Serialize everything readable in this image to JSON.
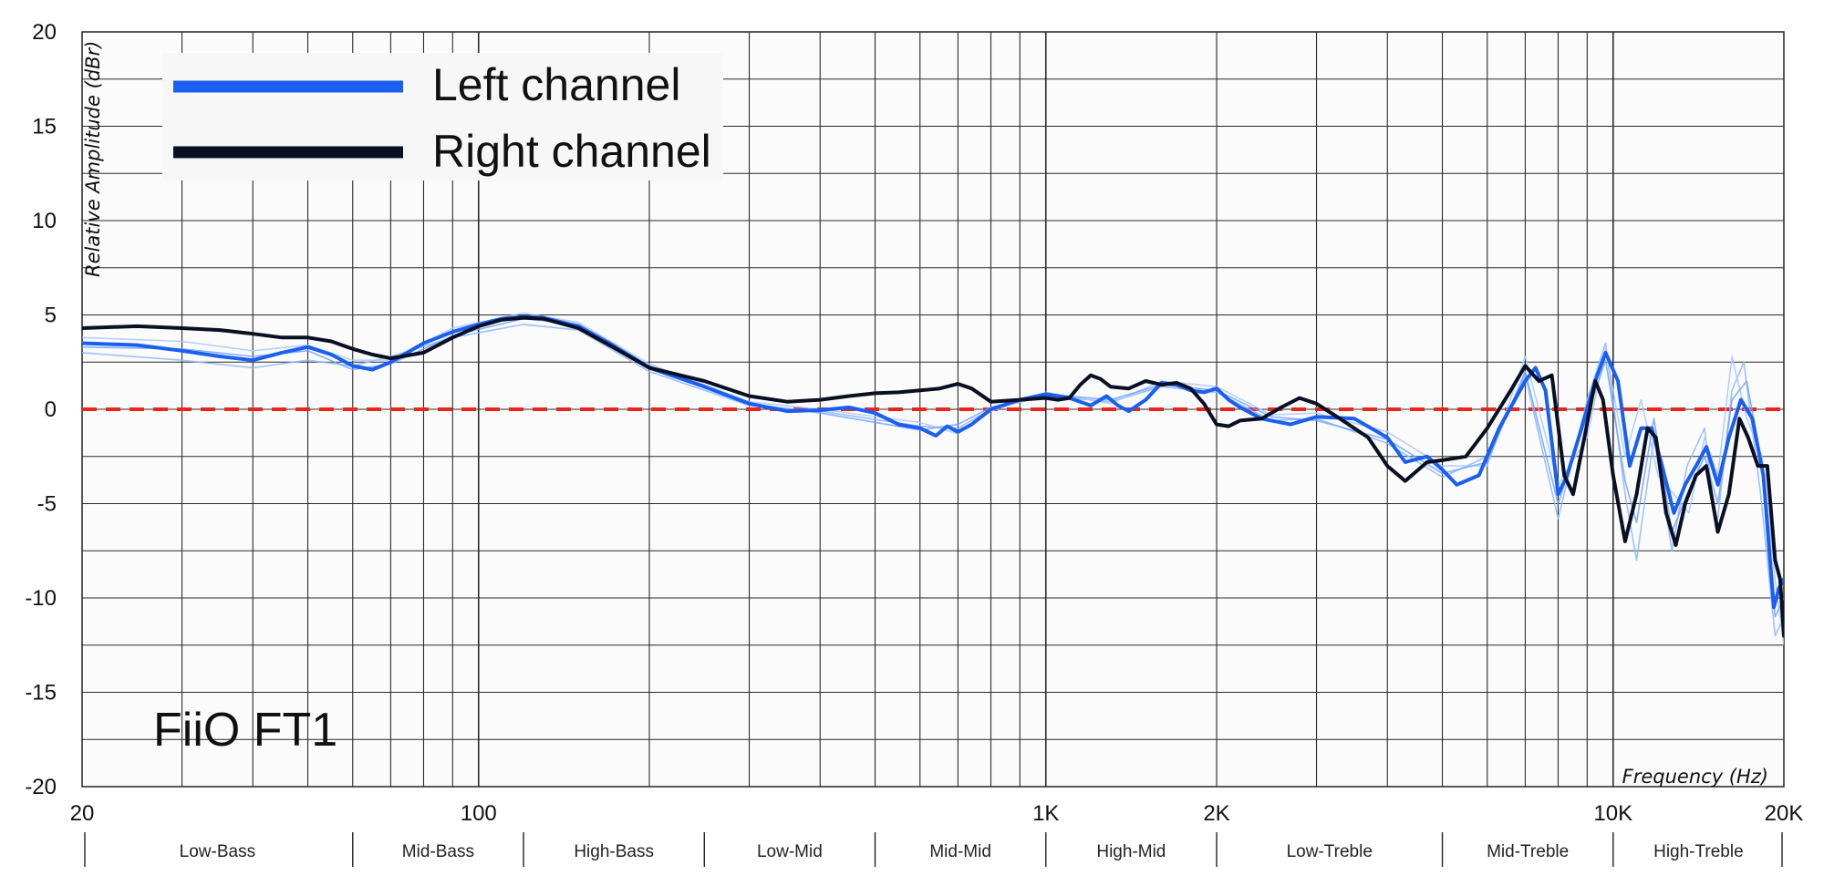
{
  "chart_data": {
    "type": "line",
    "title": "FiiO FT1",
    "xlabel": "Frequency (Hz)",
    "ylabel": "Relative Amplitude (dBr)",
    "x_scale": "log",
    "xlim": [
      20,
      20000
    ],
    "ylim": [
      -20,
      20
    ],
    "grid": true,
    "legend_position": "top-left",
    "x_ticks": [
      {
        "value": 20,
        "label": "20"
      },
      {
        "value": 100,
        "label": "100"
      },
      {
        "value": 1000,
        "label": "1K"
      },
      {
        "value": 2000,
        "label": "2K"
      },
      {
        "value": 10000,
        "label": "10K"
      },
      {
        "value": 20000,
        "label": "20K"
      }
    ],
    "y_ticks": [
      20,
      15,
      10,
      5,
      0,
      -5,
      -10,
      -15,
      -20
    ],
    "reference_line": {
      "y": 0,
      "color": "#e8261b",
      "style": "dashed"
    },
    "bands": [
      {
        "label": "Low-Bass",
        "from": 20,
        "to": 60
      },
      {
        "label": "Mid-Bass",
        "from": 60,
        "to": 120
      },
      {
        "label": "High-Bass",
        "from": 120,
        "to": 250
      },
      {
        "label": "Low-Mid",
        "from": 250,
        "to": 500
      },
      {
        "label": "Mid-Mid",
        "from": 500,
        "to": 1000
      },
      {
        "label": "High-Mid",
        "from": 1000,
        "to": 2000
      },
      {
        "label": "Low-Treble",
        "from": 2000,
        "to": 5000
      },
      {
        "label": "Mid-Treble",
        "from": 5000,
        "to": 10000
      },
      {
        "label": "High-Treble",
        "from": 10000,
        "to": 20000
      }
    ],
    "series": [
      {
        "name": "Left channel",
        "color": "#1a5ff0",
        "points": [
          [
            20,
            3.5
          ],
          [
            25,
            3.4
          ],
          [
            30,
            3.1
          ],
          [
            35,
            2.8
          ],
          [
            40,
            2.6
          ],
          [
            45,
            3.0
          ],
          [
            50,
            3.3
          ],
          [
            55,
            2.9
          ],
          [
            60,
            2.3
          ],
          [
            65,
            2.1
          ],
          [
            70,
            2.5
          ],
          [
            80,
            3.5
          ],
          [
            90,
            4.1
          ],
          [
            100,
            4.5
          ],
          [
            110,
            4.8
          ],
          [
            120,
            4.9
          ],
          [
            130,
            4.85
          ],
          [
            150,
            4.4
          ],
          [
            170,
            3.5
          ],
          [
            200,
            2.2
          ],
          [
            250,
            1.2
          ],
          [
            300,
            0.3
          ],
          [
            350,
            -0.1
          ],
          [
            400,
            -0.05
          ],
          [
            450,
            0.1
          ],
          [
            500,
            -0.2
          ],
          [
            550,
            -0.8
          ],
          [
            600,
            -1.0
          ],
          [
            640,
            -1.4
          ],
          [
            670,
            -0.9
          ],
          [
            700,
            -1.2
          ],
          [
            740,
            -0.8
          ],
          [
            800,
            0.0
          ],
          [
            900,
            0.5
          ],
          [
            1000,
            0.8
          ],
          [
            1100,
            0.6
          ],
          [
            1200,
            0.2
          ],
          [
            1280,
            0.7
          ],
          [
            1340,
            0.2
          ],
          [
            1400,
            -0.1
          ],
          [
            1500,
            0.5
          ],
          [
            1600,
            1.4
          ],
          [
            1700,
            1.3
          ],
          [
            1800,
            1.0
          ],
          [
            1900,
            0.9
          ],
          [
            2000,
            1.1
          ],
          [
            2100,
            0.5
          ],
          [
            2200,
            0.1
          ],
          [
            2400,
            -0.5
          ],
          [
            2700,
            -0.8
          ],
          [
            3000,
            -0.4
          ],
          [
            3500,
            -0.5
          ],
          [
            4000,
            -1.5
          ],
          [
            4300,
            -2.8
          ],
          [
            4700,
            -2.5
          ],
          [
            5000,
            -3.2
          ],
          [
            5300,
            -4.0
          ],
          [
            5800,
            -3.5
          ],
          [
            6300,
            -1.0
          ],
          [
            7000,
            1.5
          ],
          [
            7300,
            2.2
          ],
          [
            7600,
            1.0
          ],
          [
            8000,
            -4.5
          ],
          [
            8300,
            -3.5
          ],
          [
            8800,
            -1.0
          ],
          [
            9300,
            1.5
          ],
          [
            9700,
            3.0
          ],
          [
            10200,
            1.5
          ],
          [
            10700,
            -3.0
          ],
          [
            11200,
            -1.0
          ],
          [
            11700,
            -1.0
          ],
          [
            12200,
            -3.0
          ],
          [
            12800,
            -5.5
          ],
          [
            13400,
            -4.0
          ],
          [
            14000,
            -3.0
          ],
          [
            14600,
            -2.0
          ],
          [
            15300,
            -4.0
          ],
          [
            16000,
            -1.5
          ],
          [
            16800,
            0.5
          ],
          [
            17600,
            -0.5
          ],
          [
            18400,
            -3.5
          ],
          [
            19200,
            -10.5
          ],
          [
            19600,
            -9.5
          ],
          [
            20000,
            -9.0
          ]
        ]
      },
      {
        "name": "Right channel",
        "color": "#0a0f24",
        "points": [
          [
            20,
            4.3
          ],
          [
            25,
            4.4
          ],
          [
            30,
            4.3
          ],
          [
            35,
            4.2
          ],
          [
            40,
            4.0
          ],
          [
            45,
            3.8
          ],
          [
            50,
            3.8
          ],
          [
            55,
            3.6
          ],
          [
            60,
            3.2
          ],
          [
            65,
            2.9
          ],
          [
            70,
            2.7
          ],
          [
            80,
            3.0
          ],
          [
            90,
            3.8
          ],
          [
            100,
            4.4
          ],
          [
            110,
            4.75
          ],
          [
            120,
            4.85
          ],
          [
            130,
            4.8
          ],
          [
            150,
            4.3
          ],
          [
            170,
            3.4
          ],
          [
            200,
            2.2
          ],
          [
            250,
            1.5
          ],
          [
            300,
            0.7
          ],
          [
            350,
            0.4
          ],
          [
            400,
            0.5
          ],
          [
            450,
            0.7
          ],
          [
            500,
            0.85
          ],
          [
            550,
            0.9
          ],
          [
            600,
            1.0
          ],
          [
            650,
            1.1
          ],
          [
            700,
            1.35
          ],
          [
            740,
            1.1
          ],
          [
            800,
            0.4
          ],
          [
            900,
            0.5
          ],
          [
            1000,
            0.6
          ],
          [
            1050,
            0.5
          ],
          [
            1100,
            0.6
          ],
          [
            1150,
            1.3
          ],
          [
            1200,
            1.8
          ],
          [
            1250,
            1.6
          ],
          [
            1300,
            1.2
          ],
          [
            1400,
            1.1
          ],
          [
            1500,
            1.5
          ],
          [
            1600,
            1.3
          ],
          [
            1700,
            1.4
          ],
          [
            1800,
            1.1
          ],
          [
            1900,
            0.3
          ],
          [
            2000,
            -0.8
          ],
          [
            2100,
            -0.9
          ],
          [
            2200,
            -0.6
          ],
          [
            2400,
            -0.5
          ],
          [
            2600,
            0.1
          ],
          [
            2800,
            0.6
          ],
          [
            3000,
            0.3
          ],
          [
            3300,
            -0.5
          ],
          [
            3700,
            -1.5
          ],
          [
            4000,
            -3.0
          ],
          [
            4300,
            -3.8
          ],
          [
            4700,
            -2.8
          ],
          [
            5000,
            -2.7
          ],
          [
            5500,
            -2.5
          ],
          [
            6000,
            -1.0
          ],
          [
            6600,
            1.0
          ],
          [
            7000,
            2.3
          ],
          [
            7400,
            1.5
          ],
          [
            7800,
            1.8
          ],
          [
            8200,
            -3.5
          ],
          [
            8500,
            -4.5
          ],
          [
            8900,
            -1.5
          ],
          [
            9300,
            1.5
          ],
          [
            9600,
            0.5
          ],
          [
            10000,
            -3.5
          ],
          [
            10500,
            -7.0
          ],
          [
            11000,
            -4.5
          ],
          [
            11500,
            -1.0
          ],
          [
            11900,
            -1.5
          ],
          [
            12400,
            -5.5
          ],
          [
            12900,
            -7.2
          ],
          [
            13400,
            -5.0
          ],
          [
            14000,
            -3.5
          ],
          [
            14600,
            -3.0
          ],
          [
            15300,
            -6.5
          ],
          [
            16000,
            -4.5
          ],
          [
            16700,
            -0.5
          ],
          [
            17300,
            -1.5
          ],
          [
            18000,
            -3.0
          ],
          [
            18700,
            -3.0
          ],
          [
            19300,
            -8.0
          ],
          [
            19700,
            -9.0
          ],
          [
            20000,
            -12.0
          ]
        ]
      }
    ],
    "faint_traces": [
      {
        "color": "#8cb6ff",
        "points": [
          [
            20,
            3.0
          ],
          [
            30,
            2.6
          ],
          [
            40,
            2.2
          ],
          [
            50,
            2.6
          ],
          [
            60,
            2.3
          ],
          [
            70,
            2.8
          ],
          [
            90,
            3.8
          ],
          [
            120,
            4.5
          ],
          [
            150,
            4.2
          ],
          [
            200,
            2.0
          ],
          [
            300,
            0.2
          ],
          [
            400,
            -0.1
          ],
          [
            600,
            -0.9
          ],
          [
            700,
            -1.0
          ],
          [
            800,
            0.0
          ],
          [
            1000,
            0.7
          ],
          [
            1300,
            0.4
          ],
          [
            1600,
            1.2
          ],
          [
            2000,
            0.9
          ],
          [
            2500,
            -0.6
          ],
          [
            3000,
            -0.5
          ],
          [
            4000,
            -1.8
          ],
          [
            5000,
            -3.6
          ],
          [
            6000,
            -2.5
          ],
          [
            7000,
            1.8
          ],
          [
            8000,
            -5.8
          ],
          [
            9000,
            0.5
          ],
          [
            9700,
            3.5
          ],
          [
            10500,
            -4.5
          ],
          [
            11000,
            -8.0
          ],
          [
            11800,
            -1.5
          ],
          [
            12700,
            -7.5
          ],
          [
            13500,
            -3.0
          ],
          [
            14500,
            -1.0
          ],
          [
            15200,
            -6.5
          ],
          [
            16200,
            1.0
          ],
          [
            17000,
            2.5
          ],
          [
            18200,
            -4.5
          ],
          [
            19300,
            -12.0
          ],
          [
            20000,
            -11.0
          ]
        ]
      },
      {
        "color": "#a8c8ff",
        "points": [
          [
            20,
            3.8
          ],
          [
            30,
            3.6
          ],
          [
            40,
            3.1
          ],
          [
            50,
            3.4
          ],
          [
            60,
            2.6
          ],
          [
            70,
            2.6
          ],
          [
            90,
            4.3
          ],
          [
            120,
            5.1
          ],
          [
            150,
            4.6
          ],
          [
            200,
            2.4
          ],
          [
            300,
            0.4
          ],
          [
            400,
            0.0
          ],
          [
            600,
            -0.7
          ],
          [
            700,
            -1.3
          ],
          [
            800,
            -0.1
          ],
          [
            1000,
            0.9
          ],
          [
            1300,
            0.3
          ],
          [
            1600,
            1.5
          ],
          [
            2000,
            1.2
          ],
          [
            2500,
            -0.3
          ],
          [
            3000,
            -0.2
          ],
          [
            4000,
            -1.2
          ],
          [
            5000,
            -3.0
          ],
          [
            6000,
            -3.0
          ],
          [
            7000,
            2.8
          ],
          [
            8000,
            -4.0
          ],
          [
            9000,
            -1.5
          ],
          [
            9700,
            3.2
          ],
          [
            10500,
            -2.5
          ],
          [
            11200,
            0.5
          ],
          [
            12000,
            -3.5
          ],
          [
            12800,
            -4.5
          ],
          [
            13600,
            -5.5
          ],
          [
            14500,
            -1.5
          ],
          [
            15300,
            -3.5
          ],
          [
            16200,
            2.8
          ],
          [
            17200,
            -0.5
          ],
          [
            18300,
            -2.5
          ],
          [
            19300,
            -9.0
          ],
          [
            20000,
            -12.5
          ]
        ]
      },
      {
        "color": "#6ea3ff",
        "points": [
          [
            20,
            3.3
          ],
          [
            30,
            3.2
          ],
          [
            40,
            2.8
          ],
          [
            50,
            3.1
          ],
          [
            60,
            2.1
          ],
          [
            70,
            2.4
          ],
          [
            90,
            3.9
          ],
          [
            120,
            4.8
          ],
          [
            150,
            4.5
          ],
          [
            200,
            2.3
          ],
          [
            300,
            0.3
          ],
          [
            400,
            -0.2
          ],
          [
            600,
            -1.1
          ],
          [
            700,
            -0.8
          ],
          [
            800,
            0.1
          ],
          [
            1000,
            0.8
          ],
          [
            1300,
            0.5
          ],
          [
            1600,
            1.3
          ],
          [
            2000,
            1.0
          ],
          [
            2500,
            -0.4
          ],
          [
            3000,
            -0.6
          ],
          [
            4000,
            -1.6
          ],
          [
            5000,
            -3.4
          ],
          [
            6000,
            -2.8
          ],
          [
            7000,
            2.0
          ],
          [
            8000,
            -5.0
          ],
          [
            9000,
            -0.3
          ],
          [
            9700,
            2.6
          ],
          [
            10500,
            -3.8
          ],
          [
            11000,
            -6.0
          ],
          [
            11800,
            -0.5
          ],
          [
            12700,
            -6.5
          ],
          [
            13500,
            -4.5
          ],
          [
            14500,
            -2.5
          ],
          [
            15300,
            -5.0
          ],
          [
            16200,
            0.5
          ],
          [
            17200,
            1.5
          ],
          [
            18300,
            -3.0
          ],
          [
            19300,
            -11.0
          ],
          [
            20000,
            -10.0
          ]
        ]
      }
    ]
  }
}
